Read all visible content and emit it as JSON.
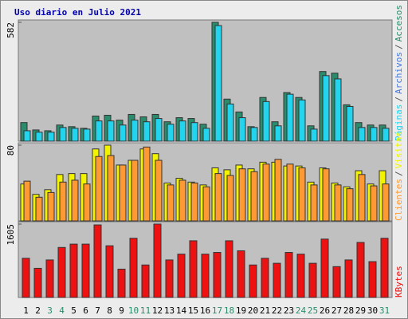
{
  "title": "Uso diario en Julio 2021",
  "legend_separator": "/",
  "chart_data": [
    {
      "type": "bar",
      "ylim": [
        0,
        582
      ],
      "yticks": [
        582
      ],
      "series": [
        {
          "name": "Accesos",
          "color": "#2a8c6c",
          "values": [
            91,
            55,
            51,
            79,
            71,
            63,
            123,
            127,
            103,
            131,
            119,
            131,
            95,
            115,
            111,
            83,
            582,
            206,
            143,
            71,
            214,
            95,
            238,
            214,
            75,
            341,
            333,
            178,
            91,
            79,
            79
          ]
        },
        {
          "name": "Páginas",
          "color": "#22d4ee",
          "values": [
            51,
            44,
            44,
            67,
            63,
            59,
            99,
            99,
            79,
            103,
            95,
            111,
            83,
            99,
            91,
            63,
            566,
            182,
            115,
            67,
            194,
            75,
            230,
            202,
            59,
            321,
            305,
            170,
            67,
            67,
            63
          ]
        }
      ],
      "extra_legend": {
        "name": "Archivos",
        "color": "#4477dd"
      }
    },
    {
      "type": "bar",
      "ylim": [
        0,
        80
      ],
      "yticks": [
        80
      ],
      "series": [
        {
          "name": "Visitas",
          "color": "#f3f300",
          "values": [
            39,
            28,
            33,
            49,
            50,
            50,
            76,
            80,
            59,
            64,
            76,
            71,
            40,
            45,
            41,
            38,
            56,
            54,
            59,
            55,
            62,
            62,
            58,
            58,
            41,
            56,
            40,
            36,
            53,
            39,
            53
          ]
        },
        {
          "name": "Clientes",
          "color": "#ff9933",
          "values": [
            42,
            25,
            30,
            41,
            43,
            39,
            68,
            69,
            59,
            64,
            78,
            64,
            38,
            43,
            40,
            36,
            50,
            48,
            55,
            52,
            60,
            65,
            60,
            56,
            38,
            55,
            38,
            34,
            49,
            37,
            39
          ]
        }
      ]
    },
    {
      "type": "bar",
      "ylim": [
        0,
        1605
      ],
      "yticks": [
        1605
      ],
      "categories": [
        "1",
        "2",
        "3",
        "4",
        "5",
        "6",
        "7",
        "8",
        "9",
        "10",
        "11",
        "12",
        "13",
        "14",
        "15",
        "16",
        "17",
        "18",
        "19",
        "20",
        "21",
        "22",
        "23",
        "24",
        "25",
        "26",
        "27",
        "28",
        "29",
        "30",
        "31"
      ],
      "category_colors": [
        "#000000",
        "#000000",
        "#2a8c6c",
        "#2a8c6c",
        "#000000",
        "#000000",
        "#000000",
        "#000000",
        "#000000",
        "#2a8c6c",
        "#2a8c6c",
        "#000000",
        "#000000",
        "#000000",
        "#000000",
        "#000000",
        "#2a8c6c",
        "#2a8c6c",
        "#000000",
        "#000000",
        "#000000",
        "#000000",
        "#000000",
        "#2a8c6c",
        "#2a8c6c",
        "#000000",
        "#000000",
        "#000000",
        "#000000",
        "#000000",
        "#2a8c6c"
      ],
      "series": [
        {
          "name": "KBytes",
          "color": "#ee1111",
          "values": [
            857,
            638,
            821,
            1094,
            1167,
            1167,
            1587,
            1131,
            620,
            1295,
            711,
            1605,
            821,
            948,
            1240,
            948,
            985,
            1240,
            1021,
            711,
            857,
            748,
            985,
            948,
            748,
            1277,
            675,
            821,
            1204,
            784,
            1295
          ]
        }
      ]
    }
  ]
}
